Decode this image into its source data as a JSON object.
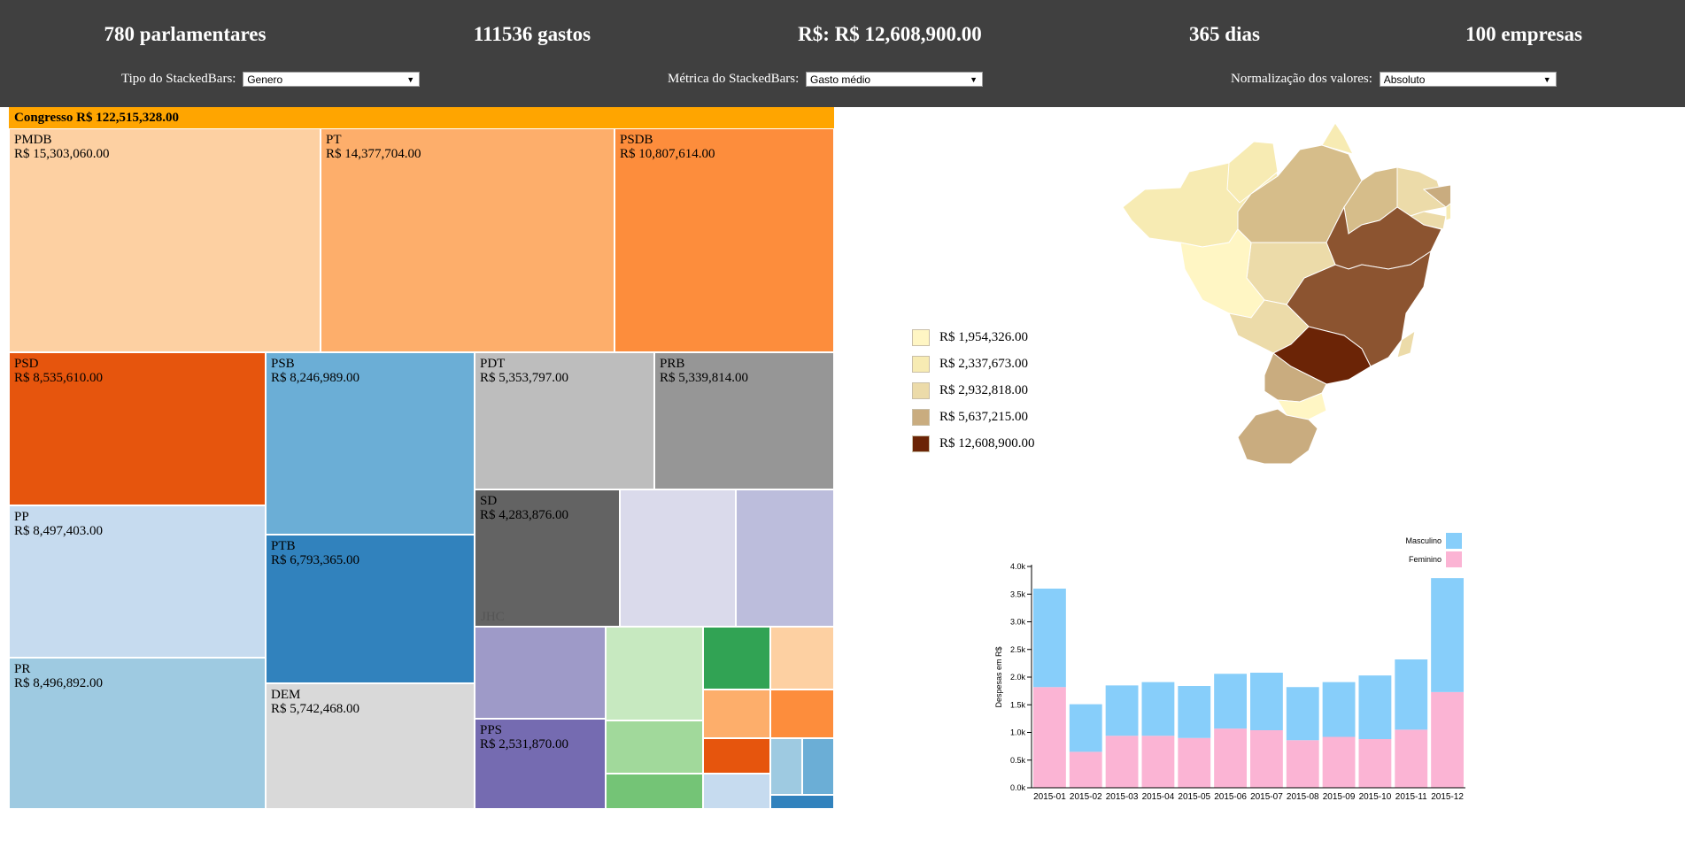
{
  "header": {
    "stats": [
      "780 parlamentares",
      "111536 gastos",
      "R$: R$ 12,608,900.00",
      "365 dias",
      "100 empresas"
    ],
    "controls": [
      {
        "label": "Tipo do StackedBars:",
        "value": "Genero"
      },
      {
        "label": "Métrica do StackedBars:",
        "value": "Gasto médio"
      },
      {
        "label": "Normalização dos valores:",
        "value": "Absoluto"
      }
    ]
  },
  "treemap": {
    "root": "Congresso R$ 122,515,328.00",
    "parties": [
      {
        "name": "PMDB",
        "value": "R$ 15,303,060.00",
        "color": "#fdd0a2"
      },
      {
        "name": "PT",
        "value": "R$ 14,377,704.00",
        "color": "#fdae6b"
      },
      {
        "name": "PSDB",
        "value": "R$ 10,807,614.00",
        "color": "#fd8d3c"
      },
      {
        "name": "PSD",
        "value": "R$ 8,535,610.00",
        "color": "#e6550d"
      },
      {
        "name": "PSB",
        "value": "R$ 8,246,989.00",
        "color": "#6baed6"
      },
      {
        "name": "PDT",
        "value": "R$ 5,353,797.00",
        "color": "#bdbdbd"
      },
      {
        "name": "PRB",
        "value": "R$ 5,339,814.00",
        "color": "#969696"
      },
      {
        "name": "PP",
        "value": "R$ 8,497,403.00",
        "color": "#c6dbef"
      },
      {
        "name": "PTB",
        "value": "R$ 6,793,365.00",
        "color": "#3182bd"
      },
      {
        "name": "SD",
        "value": "R$ 4,283,876.00",
        "color": "#636363",
        "footer": "JHC"
      },
      {
        "name": "PR",
        "value": "R$ 8,496,892.00",
        "color": "#9ecae1"
      },
      {
        "name": "DEM",
        "value": "R$ 5,742,468.00",
        "color": "#d9d9d9"
      },
      {
        "name": "PPS",
        "value": "R$ 2,531,870.00",
        "color": "#756bb1"
      }
    ],
    "unlabeled_colors": [
      "#dadaeb",
      "#bcbddc",
      "#9e9ac8",
      "#c7e9c0",
      "#a1d99b",
      "#74c476",
      "#31a354",
      "#fdd0a2",
      "#fdae6b",
      "#fd8d3c",
      "#e6550d",
      "#c6dbef",
      "#9ecae1",
      "#6baed6",
      "#3182bd"
    ]
  },
  "map": {
    "legend": [
      {
        "label": "R$ 1,954,326.00",
        "color": "#fff6c4"
      },
      {
        "label": "R$ 2,337,673.00",
        "color": "#f7ebb3"
      },
      {
        "label": "R$ 2,932,818.00",
        "color": "#ecdba9"
      },
      {
        "label": "R$ 5,637,215.00",
        "color": "#c9ac7f"
      },
      {
        "label": "R$ 12,608,900.00",
        "color": "#6b2406"
      }
    ],
    "region_colors": [
      "#f7ebb3",
      "#d6bd8a",
      "#ecdba9",
      "#8c5430",
      "#6b2406",
      "#c9ac7f",
      "#fff6c4"
    ]
  },
  "chart_data": {
    "type": "bar",
    "stacked": true,
    "categories": [
      "2015-01",
      "2015-02",
      "2015-03",
      "2015-04",
      "2015-05",
      "2015-06",
      "2015-07",
      "2015-08",
      "2015-09",
      "2015-10",
      "2015-11",
      "2015-12"
    ],
    "series": [
      {
        "name": "Feminino",
        "color": "#fbb4d4",
        "values": [
          1820,
          650,
          940,
          940,
          900,
          1070,
          1040,
          860,
          920,
          880,
          1050,
          1730
        ]
      },
      {
        "name": "Masculino",
        "color": "#87cefa",
        "values": [
          1780,
          860,
          910,
          970,
          940,
          990,
          1040,
          960,
          990,
          1150,
          1270,
          2060
        ]
      }
    ],
    "ylabel": "Despesas em R$",
    "yticks": [
      "0.0k",
      "0.5k",
      "1.0k",
      "1.5k",
      "2.0k",
      "2.5k",
      "3.0k",
      "3.5k",
      "4.0k"
    ],
    "ylim": [
      0,
      4000
    ],
    "legend_position": "top-right"
  }
}
